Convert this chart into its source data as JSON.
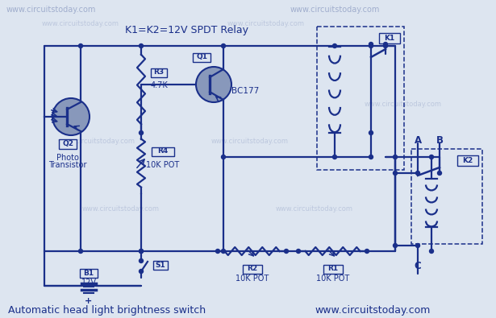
{
  "title": "Automatic head light brightness switch",
  "website_top": "www.circuitstoday.com",
  "website_bottom": "www.circuitstoday.com",
  "relay_label": "K1=K2=12V SPDT Relay",
  "bg_color": "#dde5f0",
  "line_color": "#1a2f8a",
  "line_width": 1.6,
  "fill_color": "#8898bb",
  "figsize": [
    6.15,
    3.95
  ],
  "dpi": 100,
  "wm_color": "#8090bb",
  "wm_alpha": 0.35
}
